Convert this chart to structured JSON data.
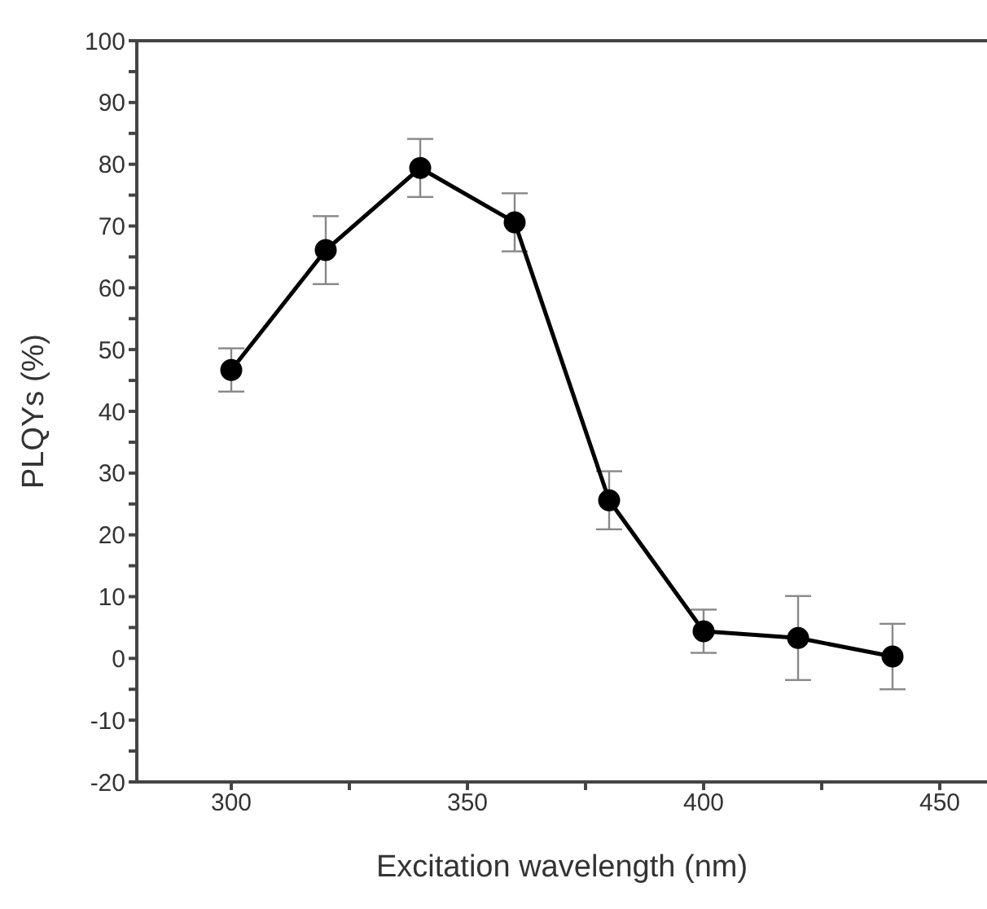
{
  "chart_data": {
    "type": "line",
    "xlabel": "Excitation wavelength (nm)",
    "ylabel": "PLQYs (%)",
    "x": [
      300,
      320,
      340,
      360,
      380,
      400,
      420,
      440
    ],
    "series": [
      {
        "color": "#000000",
        "values": [
          46.7,
          66.1,
          79.4,
          70.6,
          25.6,
          4.4,
          3.3,
          0.3
        ],
        "errors": [
          3.5,
          5.5,
          4.7,
          4.7,
          4.7,
          3.5,
          6.8,
          5.3
        ]
      }
    ],
    "xlim": [
      280,
      460
    ],
    "xticks": [
      300,
      {
        "value": 325,
        "label": null
      },
      350,
      {
        "value": 375,
        "label": null
      },
      400,
      {
        "value": 425,
        "label": null
      },
      450
    ],
    "ylim": [
      -20,
      100
    ],
    "yticks": [
      -20,
      {
        "value": -15,
        "label": null
      },
      -10,
      {
        "value": -5,
        "label": null
      },
      0,
      {
        "value": 5,
        "label": null
      },
      10,
      {
        "value": 15,
        "label": null
      },
      20,
      {
        "value": 25,
        "label": null
      },
      30,
      {
        "value": 35,
        "label": null
      },
      40,
      {
        "value": 45,
        "label": null
      },
      50,
      {
        "value": 55,
        "label": null
      },
      60,
      {
        "value": 65,
        "label": null
      },
      70,
      {
        "value": 75,
        "label": null
      },
      80,
      {
        "value": 85,
        "label": null
      },
      90,
      {
        "value": 95,
        "label": null
      },
      100
    ],
    "marker": "circle",
    "line_style": "solid",
    "grid": false,
    "legend": false
  }
}
